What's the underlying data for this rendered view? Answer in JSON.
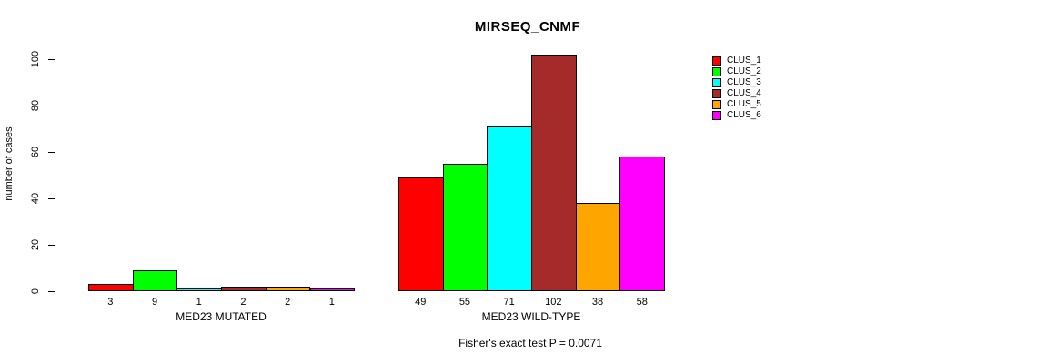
{
  "chart_data": {
    "type": "bar",
    "title": "MIRSEQ_CNMF",
    "ylabel": "number of cases",
    "xlabel": "",
    "ylim": [
      0,
      100
    ],
    "yticks": [
      0,
      20,
      40,
      60,
      80,
      100
    ],
    "grid": false,
    "legend_position": "right",
    "series": [
      {
        "name": "CLUS_1",
        "color": "#FF0000"
      },
      {
        "name": "CLUS_2",
        "color": "#00FF00"
      },
      {
        "name": "CLUS_3",
        "color": "#00FFFF"
      },
      {
        "name": "CLUS_4",
        "color": "#A52A2A"
      },
      {
        "name": "CLUS_5",
        "color": "#FFA500"
      },
      {
        "name": "CLUS_6",
        "color": "#FF00FF"
      }
    ],
    "groups": [
      {
        "label": "MED23 MUTATED",
        "values": [
          3,
          9,
          1,
          2,
          2,
          1
        ]
      },
      {
        "label": "MED23 WILD-TYPE",
        "values": [
          49,
          55,
          71,
          102,
          38,
          58
        ]
      }
    ],
    "annotation": "Fisher's exact test P = 0.0071"
  }
}
